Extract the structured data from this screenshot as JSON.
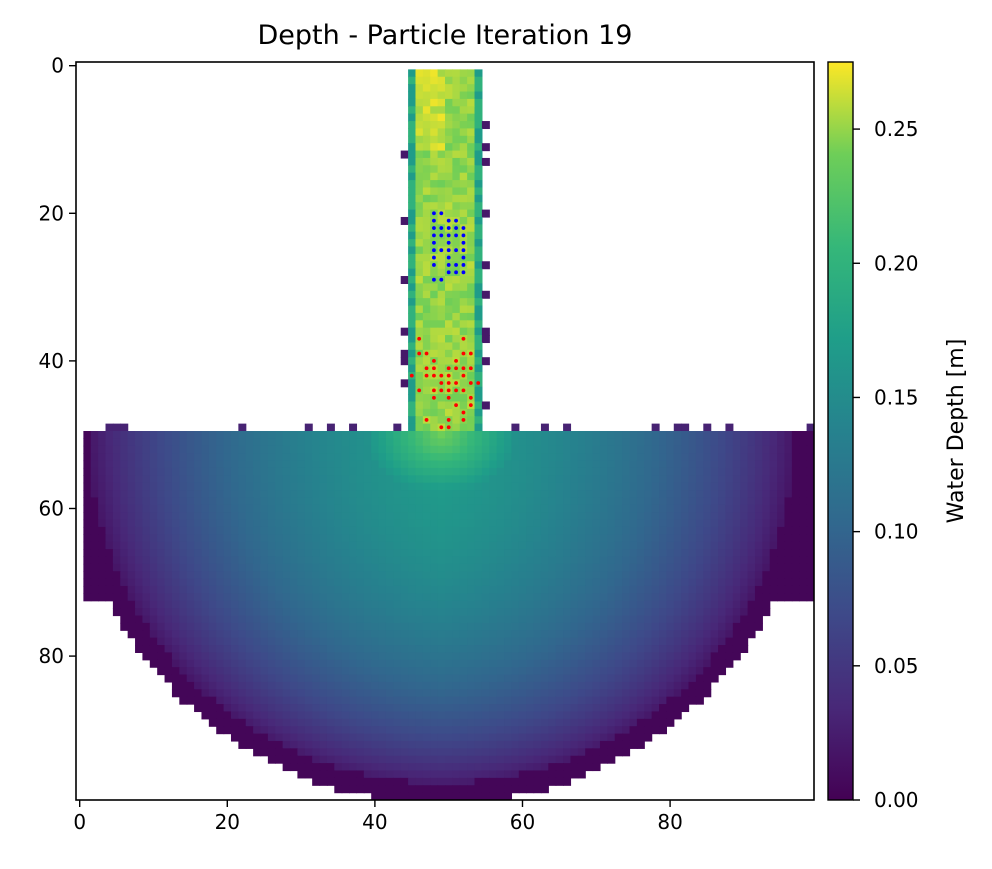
{
  "chart_data": {
    "type": "heatmap",
    "title": "Depth - Particle Iteration 19",
    "xlabel": "",
    "ylabel": "",
    "xlim": [
      -0.5,
      99.5
    ],
    "ylim": [
      99.5,
      -0.5
    ],
    "x_ticks": [
      0,
      20,
      40,
      60,
      80
    ],
    "y_ticks": [
      0,
      20,
      40,
      60,
      80
    ],
    "colorbar": {
      "label": "Water Depth [m]",
      "colormap": "viridis",
      "range": [
        0.0,
        0.275
      ],
      "ticks": [
        0.0,
        0.05,
        0.1,
        0.15,
        0.2,
        0.25
      ],
      "tick_labels": [
        "0.00",
        "0.05",
        "0.10",
        "0.15",
        "0.20",
        "0.25"
      ]
    },
    "field": {
      "grid_size": [
        100,
        100
      ],
      "channel": {
        "col_range": [
          45,
          54
        ],
        "row_range": [
          1,
          49
        ],
        "depth": 0.25
      },
      "basin": {
        "top_row": 50,
        "center_col": 49.5,
        "bottom_row": 99,
        "max_depth": 0.17
      }
    },
    "series": [
      {
        "color": "#0000ff",
        "points": [
          [
            48,
            20
          ],
          [
            49,
            20
          ],
          [
            48,
            21
          ],
          [
            50,
            21
          ],
          [
            51,
            21
          ],
          [
            48,
            22
          ],
          [
            49,
            22
          ],
          [
            50,
            22
          ],
          [
            51,
            22
          ],
          [
            52,
            22
          ],
          [
            48,
            23
          ],
          [
            49,
            23
          ],
          [
            50,
            23
          ],
          [
            51,
            23
          ],
          [
            52,
            23
          ],
          [
            48,
            24
          ],
          [
            50,
            24
          ],
          [
            52,
            24
          ],
          [
            48,
            25
          ],
          [
            49,
            25
          ],
          [
            50,
            25
          ],
          [
            51,
            25
          ],
          [
            52,
            25
          ],
          [
            48,
            26
          ],
          [
            50,
            26
          ],
          [
            52,
            26
          ],
          [
            48,
            27
          ],
          [
            50,
            27
          ],
          [
            51,
            27
          ],
          [
            52,
            27
          ],
          [
            50,
            28
          ],
          [
            51,
            28
          ],
          [
            52,
            28
          ],
          [
            48,
            29
          ],
          [
            49,
            29
          ]
        ]
      },
      {
        "color": "#ff0000",
        "points": [
          [
            46,
            37
          ],
          [
            52,
            37
          ],
          [
            46,
            39
          ],
          [
            47,
            39
          ],
          [
            52,
            39
          ],
          [
            53,
            39
          ],
          [
            48,
            40
          ],
          [
            51,
            40
          ],
          [
            47,
            41
          ],
          [
            48,
            41
          ],
          [
            50,
            41
          ],
          [
            51,
            41
          ],
          [
            52,
            41
          ],
          [
            53,
            41
          ],
          [
            45,
            42
          ],
          [
            47,
            42
          ],
          [
            48,
            42
          ],
          [
            49,
            42
          ],
          [
            50,
            42
          ],
          [
            52,
            42
          ],
          [
            49,
            43
          ],
          [
            50,
            43
          ],
          [
            51,
            43
          ],
          [
            53,
            43
          ],
          [
            54,
            43
          ],
          [
            46,
            44
          ],
          [
            48,
            44
          ],
          [
            49,
            44
          ],
          [
            50,
            44
          ],
          [
            51,
            44
          ],
          [
            52,
            44
          ],
          [
            48,
            45
          ],
          [
            50,
            45
          ],
          [
            53,
            45
          ],
          [
            51,
            46
          ],
          [
            53,
            46
          ],
          [
            52,
            47
          ],
          [
            47,
            48
          ],
          [
            50,
            48
          ],
          [
            52,
            48
          ],
          [
            49,
            49
          ],
          [
            50,
            49
          ]
        ]
      }
    ]
  }
}
